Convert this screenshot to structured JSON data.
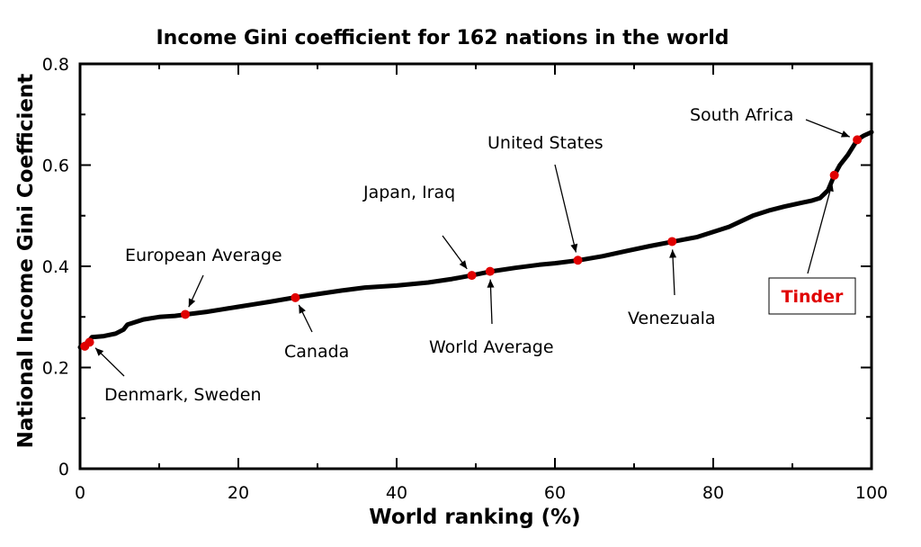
{
  "chart_data": {
    "type": "line",
    "title": "Income Gini coefficient for 162 nations in the world",
    "xlabel": "World ranking (%)",
    "ylabel": "National Income Gini Coefficient",
    "xlim": [
      0,
      100
    ],
    "ylim": [
      0,
      0.8
    ],
    "x_ticks": [
      0,
      20,
      40,
      60,
      80,
      100
    ],
    "x_tick_labels": [
      "0",
      "20",
      "40",
      "60",
      "80",
      "100"
    ],
    "y_ticks": [
      0,
      0.2,
      0.4,
      0.6,
      0.8
    ],
    "y_tick_labels": [
      "0",
      "0.2",
      "0.4",
      "0.6",
      "0.8"
    ],
    "grid": false,
    "series": [
      {
        "color": "#000000",
        "x": [
          0,
          1,
          1.5,
          3,
          4.5,
          5.5,
          6,
          8,
          10,
          12,
          13.5,
          16,
          18,
          20,
          22,
          24,
          27,
          30,
          33,
          36,
          40,
          44,
          47,
          49.5,
          52,
          55,
          58,
          60,
          63,
          66,
          69,
          72,
          75,
          78,
          80,
          82,
          85,
          87,
          89,
          91,
          92.5,
          93.5,
          94.5,
          95.3,
          96,
          97,
          98.2,
          99,
          100
        ],
        "y": [
          0.24,
          0.25,
          0.26,
          0.262,
          0.267,
          0.275,
          0.285,
          0.295,
          0.3,
          0.302,
          0.305,
          0.31,
          0.315,
          0.32,
          0.325,
          0.33,
          0.338,
          0.345,
          0.352,
          0.358,
          0.362,
          0.368,
          0.375,
          0.382,
          0.39,
          0.397,
          0.403,
          0.406,
          0.412,
          0.42,
          0.43,
          0.44,
          0.449,
          0.458,
          0.468,
          0.478,
          0.5,
          0.51,
          0.518,
          0.525,
          0.53,
          0.535,
          0.55,
          0.58,
          0.6,
          0.62,
          0.65,
          0.658,
          0.665
        ]
      }
    ],
    "highlight_color": "#e00000",
    "points": [
      {
        "x": 0.6,
        "y": 0.242
      },
      {
        "x": 1.2,
        "y": 0.25
      },
      {
        "x": 13.3,
        "y": 0.305
      },
      {
        "x": 27.2,
        "y": 0.338
      },
      {
        "x": 49.5,
        "y": 0.382
      },
      {
        "x": 51.8,
        "y": 0.39
      },
      {
        "x": 62.9,
        "y": 0.412
      },
      {
        "x": 74.8,
        "y": 0.449
      },
      {
        "x": 95.3,
        "y": 0.58
      },
      {
        "x": 98.2,
        "y": 0.65
      }
    ],
    "annotations": [
      {
        "text": "Denmark, Sweden",
        "highlight": false
      },
      {
        "text": "European Average",
        "highlight": false
      },
      {
        "text": "Canada",
        "highlight": false
      },
      {
        "text": "Japan, Iraq",
        "highlight": false
      },
      {
        "text": "World Average",
        "highlight": false
      },
      {
        "text": "United States",
        "highlight": false
      },
      {
        "text": "Venezuala",
        "highlight": false
      },
      {
        "text": "South Africa",
        "highlight": false
      },
      {
        "text": "Tinder",
        "highlight": true
      }
    ]
  }
}
